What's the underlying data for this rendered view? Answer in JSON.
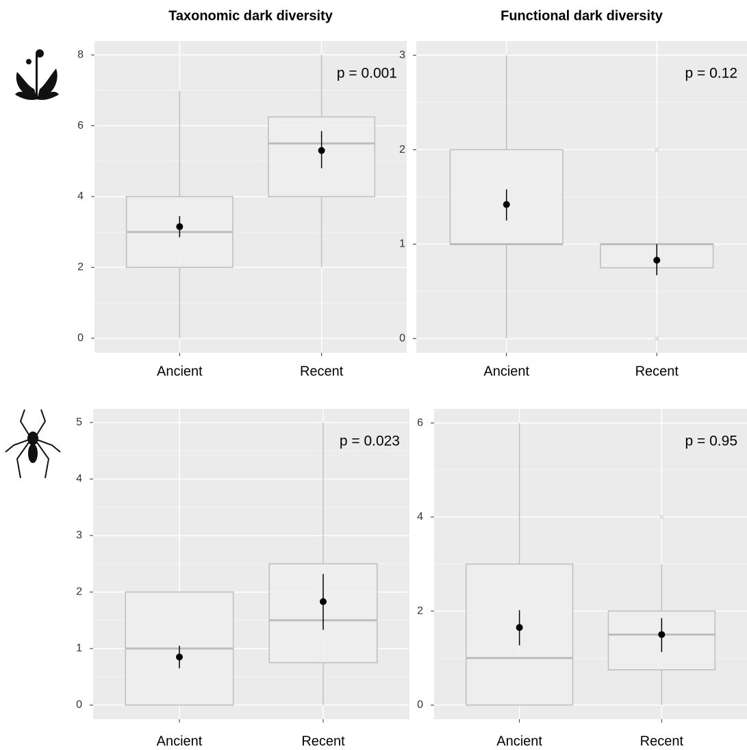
{
  "chart_data": [
    {
      "type": "box",
      "title": "Taxonomic dark diversity",
      "categories": [
        "Ancient",
        "Recent"
      ],
      "boxes": [
        {
          "whislo": 0,
          "q1": 2,
          "med": 3,
          "q3": 4,
          "whishi": 7,
          "mean": 3.15,
          "mean_lo": 2.85,
          "mean_hi": 3.45,
          "outliers": []
        },
        {
          "whislo": 2,
          "q1": 4,
          "med": 5.5,
          "q3": 6.25,
          "whishi": 8,
          "mean": 5.3,
          "mean_lo": 4.8,
          "mean_hi": 5.85,
          "outliers": []
        }
      ],
      "annotation": "p = 0.001",
      "ylim": [
        -0.41,
        8.39
      ],
      "yticks": [
        0,
        2,
        4,
        6,
        8
      ],
      "grid": true,
      "color": "#bdbdbd"
    },
    {
      "type": "box",
      "title": "Functional dark diversity",
      "categories": [
        "Ancient",
        "Recent"
      ],
      "boxes": [
        {
          "whislo": 0,
          "q1": 1,
          "med": 1,
          "q3": 2,
          "whishi": 3,
          "mean": 1.42,
          "mean_lo": 1.25,
          "mean_hi": 1.58,
          "outliers": []
        },
        {
          "whislo": 0.75,
          "q1": 0.75,
          "med": 1,
          "q3": 1,
          "whishi": 1,
          "mean": 0.83,
          "mean_lo": 0.67,
          "mean_hi": 1.0,
          "outliers": [
            0,
            2
          ]
        }
      ],
      "annotation": "p = 0.12",
      "ylim": [
        -0.15,
        3.15
      ],
      "yticks": [
        0,
        1,
        2,
        3
      ],
      "grid": true,
      "color": "#bdbdbd"
    },
    {
      "type": "box",
      "categories": [
        "Ancient",
        "Recent"
      ],
      "boxes": [
        {
          "whislo": 0,
          "q1": 0,
          "med": 1,
          "q3": 2,
          "whishi": 2,
          "mean": 0.85,
          "mean_lo": 0.65,
          "mean_hi": 1.05,
          "outliers": []
        },
        {
          "whislo": 0,
          "q1": 0.75,
          "med": 1.5,
          "q3": 2.5,
          "whishi": 5,
          "mean": 1.83,
          "mean_lo": 1.33,
          "mean_hi": 2.32,
          "outliers": []
        }
      ],
      "annotation": "p = 0.023",
      "ylim": [
        -0.25,
        5.24
      ],
      "yticks": [
        0,
        1,
        2,
        3,
        4,
        5
      ],
      "grid": true,
      "color": "#bdbdbd"
    },
    {
      "type": "box",
      "categories": [
        "Ancient",
        "Recent"
      ],
      "boxes": [
        {
          "whislo": 0,
          "q1": 0,
          "med": 1,
          "q3": 3,
          "whishi": 6,
          "mean": 1.65,
          "mean_lo": 1.27,
          "mean_hi": 2.02,
          "outliers": []
        },
        {
          "whislo": 0,
          "q1": 0.75,
          "med": 1.5,
          "q3": 2,
          "whishi": 3,
          "mean": 1.5,
          "mean_lo": 1.13,
          "mean_hi": 1.85,
          "outliers": [
            4
          ]
        }
      ],
      "annotation": "p = 0.95",
      "ylim": [
        -0.3,
        6.3
      ],
      "yticks": [
        0,
        2,
        4,
        6
      ],
      "grid": true,
      "color": "#bdbdbd"
    }
  ]
}
